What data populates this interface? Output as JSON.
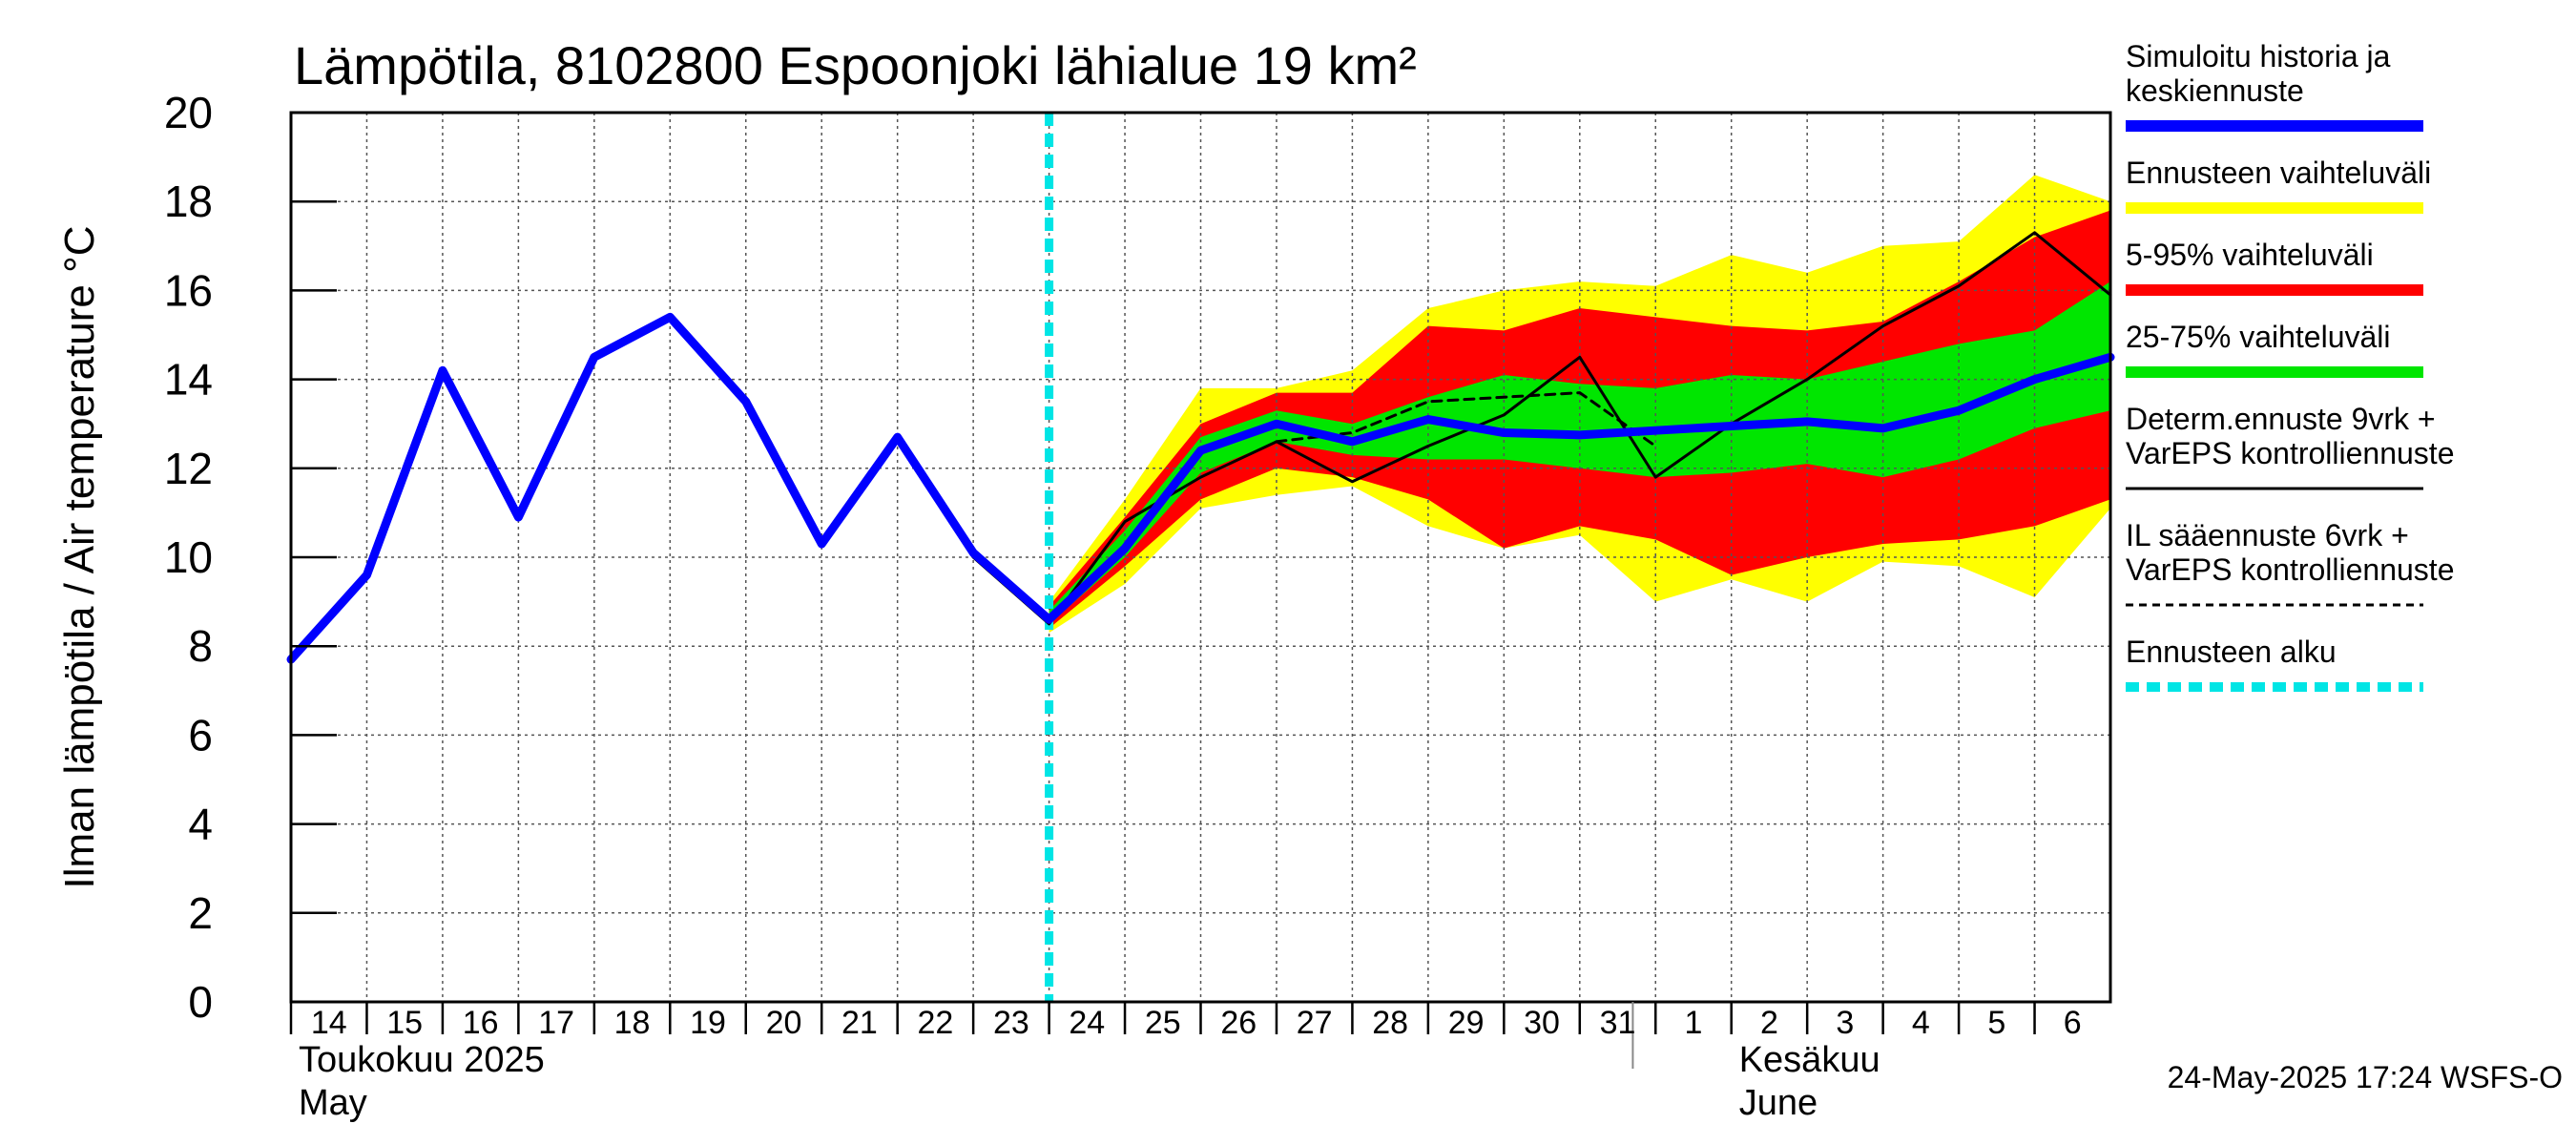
{
  "chart_data": {
    "type": "line",
    "title": "Lämpötila, 8102800 Espoonjoki lähialue 19 km²",
    "ylabel": "Ilman lämpötila / Air temperature    °C",
    "ylim": [
      0,
      20
    ],
    "yticks": [
      "0",
      "2",
      "4",
      "6",
      "8",
      "10",
      "12",
      "14",
      "16",
      "18",
      "20"
    ],
    "grid": true,
    "x_range": [
      0,
      24
    ],
    "day_ticks": [
      {
        "label": "14",
        "x": 0
      },
      {
        "label": "15",
        "x": 1
      },
      {
        "label": "16",
        "x": 2
      },
      {
        "label": "17",
        "x": 3
      },
      {
        "label": "18",
        "x": 4
      },
      {
        "label": "19",
        "x": 5
      },
      {
        "label": "20",
        "x": 6
      },
      {
        "label": "21",
        "x": 7
      },
      {
        "label": "22",
        "x": 8
      },
      {
        "label": "23",
        "x": 9
      },
      {
        "label": "24",
        "x": 10
      },
      {
        "label": "25",
        "x": 11
      },
      {
        "label": "26",
        "x": 12
      },
      {
        "label": "27",
        "x": 13
      },
      {
        "label": "28",
        "x": 14
      },
      {
        "label": "29",
        "x": 15
      },
      {
        "label": "30",
        "x": 16
      },
      {
        "label": "31",
        "x": 17
      },
      {
        "label": "1",
        "x": 18
      },
      {
        "label": "2",
        "x": 19
      },
      {
        "label": "3",
        "x": 20
      },
      {
        "label": "4",
        "x": 21
      },
      {
        "label": "5",
        "x": 22
      },
      {
        "label": "6",
        "x": 23
      }
    ],
    "months": [
      {
        "fi": "Toukokuu  2025",
        "en": "May",
        "x": 0
      },
      {
        "fi": "Kesäkuu",
        "en": "June",
        "x": 19
      }
    ],
    "month_divider_x": 17.7,
    "forecast_start_x": 10,
    "series": [
      {
        "name": "Simuloitu historia ja keskiennuste",
        "x": [
          0,
          1,
          2,
          3,
          4,
          5,
          6,
          7,
          8,
          9,
          10,
          11,
          12,
          13,
          14,
          15,
          16,
          17,
          18,
          19,
          20,
          21,
          22,
          23,
          24
        ],
        "values": [
          7.7,
          9.6,
          14.2,
          10.9,
          14.5,
          15.4,
          13.5,
          10.3,
          12.7,
          10.1,
          8.6,
          10.2,
          12.4,
          13.0,
          12.6,
          13.1,
          12.8,
          12.75,
          12.85,
          12.95,
          13.05,
          12.9,
          13.3,
          14.0,
          14.5
        ]
      },
      {
        "name": "Determ.ennuste 9vrk + VarEPS kontrolliennuste",
        "x": [
          8,
          9,
          10,
          11,
          12,
          13,
          14,
          15,
          16,
          17,
          18,
          19,
          20,
          21,
          22,
          23,
          24
        ],
        "values": [
          12.6,
          10.0,
          8.5,
          10.8,
          11.8,
          12.6,
          11.7,
          12.5,
          13.2,
          14.5,
          11.8,
          13.0,
          14.0,
          15.2,
          16.1,
          17.3,
          15.9
        ]
      },
      {
        "name": "IL sääennuste 6vrk + VarEPS kontrolliennuste",
        "x": [
          13,
          14,
          15,
          16,
          17,
          18
        ],
        "values": [
          12.6,
          12.8,
          13.5,
          13.6,
          13.7,
          12.5
        ]
      }
    ],
    "bands": [
      {
        "name": "Ennusteen vaihteluväli",
        "x": [
          10,
          11,
          12,
          13,
          14,
          15,
          16,
          17,
          18,
          19,
          20,
          21,
          22,
          23,
          24
        ],
        "lower": [
          8.3,
          9.4,
          11.1,
          11.4,
          11.6,
          10.7,
          10.2,
          10.5,
          9.0,
          9.5,
          9.0,
          9.9,
          9.8,
          9.1,
          11.1
        ],
        "upper": [
          9.0,
          11.3,
          13.8,
          13.8,
          14.2,
          15.6,
          16.0,
          16.2,
          16.1,
          16.8,
          16.4,
          17.0,
          17.1,
          18.6,
          18.0
        ]
      },
      {
        "name": "5-95% vaihteluväli",
        "x": [
          10,
          11,
          12,
          13,
          14,
          15,
          16,
          17,
          18,
          19,
          20,
          21,
          22,
          23,
          24
        ],
        "lower": [
          8.4,
          9.8,
          11.3,
          12.0,
          11.8,
          11.3,
          10.2,
          10.7,
          10.4,
          9.6,
          10.0,
          10.3,
          10.4,
          10.7,
          11.3
        ],
        "upper": [
          8.9,
          10.9,
          13.0,
          13.7,
          13.7,
          15.2,
          15.1,
          15.6,
          15.4,
          15.2,
          15.1,
          15.3,
          16.2,
          17.2,
          17.8
        ]
      },
      {
        "name": "25-75% vaihteluväli",
        "x": [
          10,
          11,
          12,
          13,
          14,
          15,
          16,
          17,
          18,
          19,
          20,
          21,
          22,
          23,
          24
        ],
        "lower": [
          8.5,
          10.0,
          11.9,
          12.6,
          12.3,
          12.2,
          12.2,
          12.0,
          11.8,
          11.9,
          12.1,
          11.8,
          12.2,
          12.9,
          13.3
        ],
        "upper": [
          8.8,
          10.6,
          12.7,
          13.3,
          13.0,
          13.6,
          14.1,
          13.9,
          13.8,
          14.1,
          14.0,
          14.4,
          14.8,
          15.1,
          16.2
        ]
      }
    ],
    "legend": [
      {
        "lines": [
          "Simuloitu historia ja",
          "keskiennuste"
        ],
        "color": "#0000ff",
        "style": "thick"
      },
      {
        "lines": [
          "Ennusteen vaihteluväli"
        ],
        "color": "#ffff00",
        "style": "thick"
      },
      {
        "lines": [
          "5-95% vaihteluväli"
        ],
        "color": "#ff0000",
        "style": "thick"
      },
      {
        "lines": [
          "25-75% vaihteluväli"
        ],
        "color": "#00e600",
        "style": "thick"
      },
      {
        "lines": [
          "Determ.ennuste 9vrk +",
          "VarEPS kontrolliennuste"
        ],
        "color": "#000000",
        "style": "thin"
      },
      {
        "lines": [
          "IL sääennuste 6vrk  +",
          "  VarEPS kontrolliennuste"
        ],
        "color": "#000000",
        "style": "dashed"
      },
      {
        "lines": [
          "Ennusteen alku"
        ],
        "color": "#00e5e5",
        "style": "dotted"
      }
    ],
    "colors": {
      "mean": "#0000ff",
      "outer_band": "#ffff00",
      "band_5_95": "#ff0000",
      "band_25_75": "#00e600",
      "deterministic": "#000000",
      "forecast_start": "#00e5e5"
    },
    "footer": "24-May-2025 17:24 WSFS-O"
  }
}
